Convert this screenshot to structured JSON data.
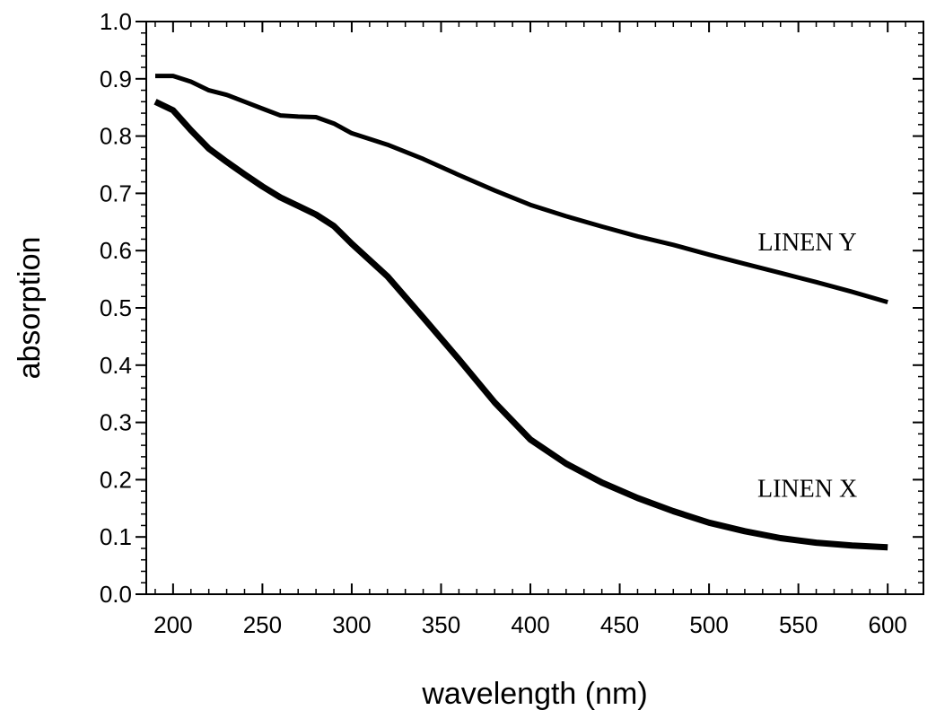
{
  "chart_data": {
    "type": "line",
    "title": "",
    "xlabel": "wavelength (nm)",
    "ylabel": "absorption",
    "xlim": [
      185,
      620
    ],
    "ylim": [
      0.0,
      1.0
    ],
    "grid": false,
    "xticks": [
      200,
      250,
      300,
      350,
      400,
      450,
      500,
      550,
      600
    ],
    "xtick_labels": [
      "200",
      "250",
      "300",
      "350",
      "400",
      "450",
      "500",
      "550",
      "600"
    ],
    "yticks": [
      0.0,
      0.1,
      0.2,
      0.3,
      0.4,
      0.5,
      0.6,
      0.7,
      0.8,
      0.9,
      1.0
    ],
    "ytick_labels": [
      "0.0",
      "0.1",
      "0.2",
      "0.3",
      "0.4",
      "0.5",
      "0.6",
      "0.7",
      "0.8",
      "0.9",
      "1.0"
    ],
    "series": [
      {
        "name": "LINEN Y",
        "x": [
          190,
          200,
          210,
          220,
          230,
          240,
          250,
          260,
          270,
          280,
          290,
          300,
          320,
          340,
          360,
          380,
          400,
          420,
          440,
          460,
          480,
          500,
          520,
          540,
          560,
          580,
          600
        ],
        "y": [
          0.905,
          0.905,
          0.895,
          0.88,
          0.872,
          0.86,
          0.848,
          0.836,
          0.834,
          0.833,
          0.822,
          0.805,
          0.785,
          0.76,
          0.732,
          0.705,
          0.68,
          0.66,
          0.642,
          0.625,
          0.61,
          0.593,
          0.577,
          0.561,
          0.545,
          0.528,
          0.51
        ]
      },
      {
        "name": "LINEN X",
        "x": [
          190,
          200,
          210,
          220,
          230,
          240,
          250,
          260,
          270,
          280,
          290,
          300,
          320,
          340,
          360,
          380,
          400,
          420,
          440,
          460,
          480,
          500,
          520,
          540,
          560,
          580,
          600
        ],
        "y": [
          0.86,
          0.845,
          0.81,
          0.778,
          0.755,
          0.733,
          0.712,
          0.693,
          0.678,
          0.663,
          0.643,
          0.612,
          0.555,
          0.483,
          0.41,
          0.335,
          0.27,
          0.228,
          0.195,
          0.168,
          0.145,
          0.125,
          0.11,
          0.098,
          0.09,
          0.085,
          0.082
        ]
      }
    ],
    "annotations": [
      {
        "text": "LINEN Y",
        "x": 555,
        "y": 0.6
      },
      {
        "text": "LINEN X",
        "x": 555,
        "y": 0.17
      }
    ]
  }
}
